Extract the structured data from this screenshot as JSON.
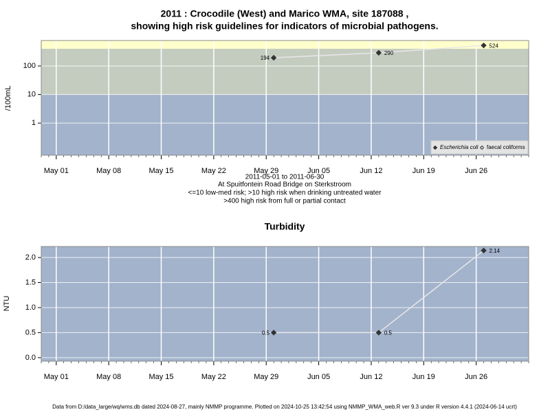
{
  "chart_data": [
    {
      "type": "line",
      "title": "2011 : Crocodile (West) and Marico WMA, site 187088 ,",
      "subtitle": "showing high risk guidelines for indicators of microbial pathogens.",
      "ylabel": "/100mL",
      "log_scale": true,
      "x": [
        "May 30",
        "Jun 13",
        "Jun 27"
      ],
      "xlim": [
        "Apr 29",
        "Jul 03"
      ],
      "xticks": [
        "May 01",
        "May 08",
        "May 15",
        "May 22",
        "May 29",
        "Jun 05",
        "Jun 12",
        "Jun 19",
        "Jun 26"
      ],
      "ylim": [
        0.075,
        780
      ],
      "yticks": [
        1,
        10,
        100
      ],
      "grid": true,
      "background": "#a3b3cc",
      "bands": [
        {
          "to": 10,
          "color": "#a3b3cc"
        },
        {
          "from": 10,
          "to": 400,
          "color": "#c4ccc0"
        },
        {
          "from": 400,
          "color": "#ffffcc"
        }
      ],
      "series": [
        {
          "name": "Escherichia coli",
          "color": "#333333",
          "line_color": "#e8e8e8",
          "marker": "filled",
          "values": [
            194,
            290,
            524
          ]
        },
        {
          "name": "faecal coliforms",
          "color": "#333333",
          "line_color": "#e8e8e8",
          "marker": "open",
          "values": [
            null,
            null,
            null
          ]
        }
      ],
      "legend": "bottom-right",
      "notes": [
        "2011-05-01 to 2011-06-30",
        "At Spuitfontein Road Bridge on Sterkstroom",
        "<=10 low-med risk; >10 high risk when drinking untreated water",
        ">400 high risk from full or partial contact"
      ]
    },
    {
      "type": "line",
      "title": "Turbidity",
      "ylabel": "NTU",
      "x": [
        "May 30",
        "Jun 13",
        "Jun 27"
      ],
      "xlim": [
        "Apr 29",
        "Jul 03"
      ],
      "xticks": [
        "May 01",
        "May 08",
        "May 15",
        "May 22",
        "May 29",
        "Jun 05",
        "Jun 12",
        "Jun 19",
        "Jun 26"
      ],
      "ylim": [
        -0.07,
        2.22
      ],
      "yticks": [
        {
          "value": 0,
          "label": "0.0"
        },
        {
          "value": 0.5,
          "label": "0.5"
        },
        {
          "value": 1,
          "label": "1.0"
        },
        {
          "value": 1.5,
          "label": "1.5"
        },
        {
          "value": 2,
          "label": "2.0"
        }
      ],
      "grid": true,
      "background": "#a3b3cc",
      "series": [
        {
          "name": "Turbidity",
          "color": "#333333",
          "line_color": "#e8e8e8",
          "marker": "filled",
          "values": [
            0.5,
            0.5,
            2.14
          ]
        }
      ]
    }
  ],
  "footer": "Data from D:/data_large/wq/wms.db dated 2024-08-27, mainly NMMP programme. Plotted on 2024-10-25 13:42:54 using NMMP_WMA_web.R ver 9.3 under R version 4.4.1 (2024-06-14 ucrt)"
}
